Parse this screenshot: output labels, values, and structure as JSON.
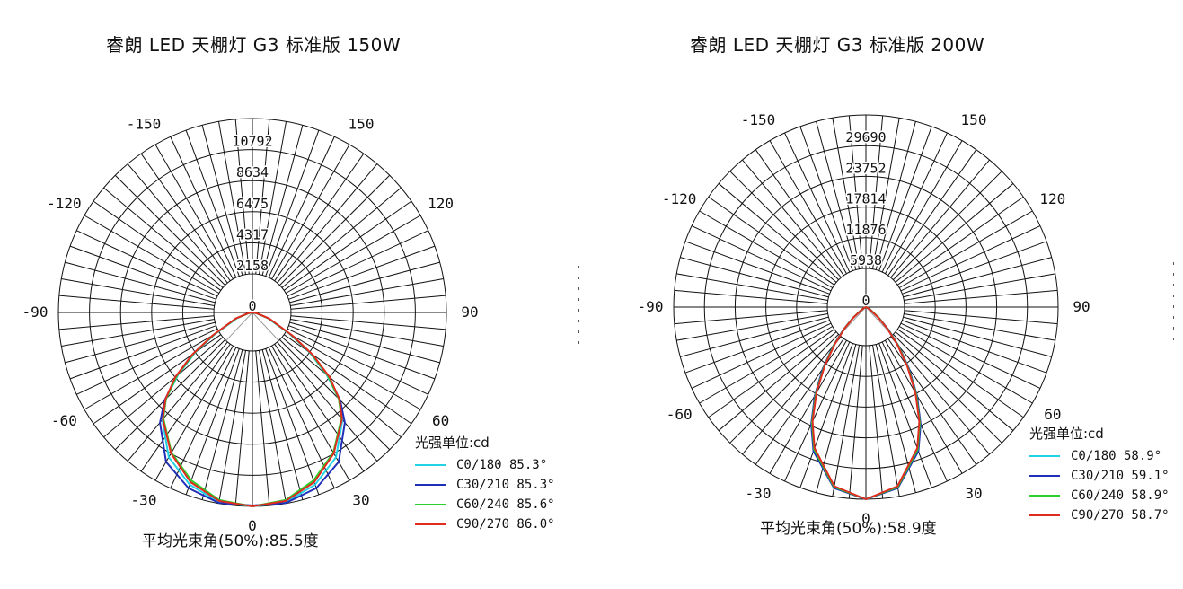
{
  "chart_data": [
    {
      "type": "polar",
      "title": "睿朗 LED 天棚灯 G3 标准版 150W",
      "radial_ticks": [
        "0",
        "2158",
        "4317",
        "6475",
        "8634",
        "10792"
      ],
      "radial_max": 10792,
      "angle_labels": [
        "0",
        "30",
        "60",
        "90",
        "120",
        "150",
        "-150",
        "-120",
        "-90",
        "-60",
        "-30"
      ],
      "unit_label": "光强单位:cd",
      "beam_angle_label": "平均光束角(50%):85.5度",
      "series": [
        {
          "name": "C0/180 85.3°",
          "color": "#22d3e6",
          "angles": [
            0,
            10,
            20,
            30,
            40,
            45,
            50,
            55,
            60,
            70,
            80,
            90
          ],
          "values": [
            10792,
            10720,
            10200,
            9300,
            7800,
            6800,
            5400,
            3900,
            2400,
            900,
            200,
            0
          ]
        },
        {
          "name": "C30/210 85.3°",
          "color": "#1f2fb8",
          "angles": [
            0,
            10,
            20,
            30,
            40,
            45,
            50,
            55,
            60,
            70,
            80,
            90
          ],
          "values": [
            10740,
            10760,
            10400,
            9600,
            8000,
            6900,
            5500,
            4000,
            2450,
            950,
            220,
            0
          ]
        },
        {
          "name": "C60/240 85.6°",
          "color": "#2bd12b",
          "angles": [
            0,
            10,
            20,
            30,
            40,
            45,
            50,
            55,
            60,
            70,
            80,
            90
          ],
          "values": [
            10792,
            10600,
            9950,
            9000,
            7700,
            6800,
            5500,
            4000,
            2500,
            950,
            220,
            0
          ]
        },
        {
          "name": "C90/270 86.0°",
          "color": "#e02b1f",
          "angles": [
            0,
            10,
            20,
            30,
            40,
            45,
            50,
            55,
            60,
            70,
            80,
            90
          ],
          "values": [
            10792,
            10650,
            10050,
            9050,
            7750,
            6850,
            5600,
            4100,
            2550,
            1000,
            240,
            0
          ]
        }
      ]
    },
    {
      "type": "polar",
      "title": "睿朗 LED 天棚灯 G3 标准版 200W",
      "radial_ticks": [
        "0",
        "5938",
        "11876",
        "17814",
        "23752",
        "29690"
      ],
      "radial_max": 29690,
      "angle_labels": [
        "0",
        "30",
        "60",
        "90",
        "120",
        "150",
        "-150",
        "-120",
        "-90",
        "-60",
        "-30"
      ],
      "unit_label": "光强单位:cd",
      "beam_angle_label": "平均光束角(50%):58.9度",
      "series": [
        {
          "name": "C0/180 58.9°",
          "color": "#22d3e6",
          "angles": [
            0,
            10,
            20,
            25,
            30,
            35,
            40,
            45,
            50,
            60,
            70,
            90
          ],
          "values": [
            29690,
            28300,
            23500,
            19800,
            15600,
            11400,
            7700,
            4700,
            2600,
            700,
            150,
            0
          ]
        },
        {
          "name": "C30/210 59.1°",
          "color": "#1f2fb8",
          "angles": [
            0,
            10,
            20,
            25,
            30,
            35,
            40,
            45,
            50,
            60,
            70,
            90
          ],
          "values": [
            29690,
            28400,
            23700,
            20000,
            15800,
            11600,
            7900,
            4900,
            2700,
            720,
            160,
            0
          ]
        },
        {
          "name": "C60/240 58.9°",
          "color": "#2bd12b",
          "angles": [
            0,
            10,
            20,
            25,
            30,
            35,
            40,
            45,
            50,
            60,
            70,
            90
          ],
          "values": [
            29690,
            28250,
            23400,
            19700,
            15500,
            11300,
            7700,
            4700,
            2600,
            700,
            150,
            0
          ]
        },
        {
          "name": "C90/270 58.7°",
          "color": "#e02b1f",
          "angles": [
            0,
            10,
            20,
            25,
            30,
            35,
            40,
            45,
            50,
            60,
            70,
            90
          ],
          "values": [
            29690,
            28100,
            23200,
            19500,
            15300,
            11100,
            7500,
            4600,
            2500,
            680,
            140,
            0
          ]
        }
      ]
    }
  ]
}
